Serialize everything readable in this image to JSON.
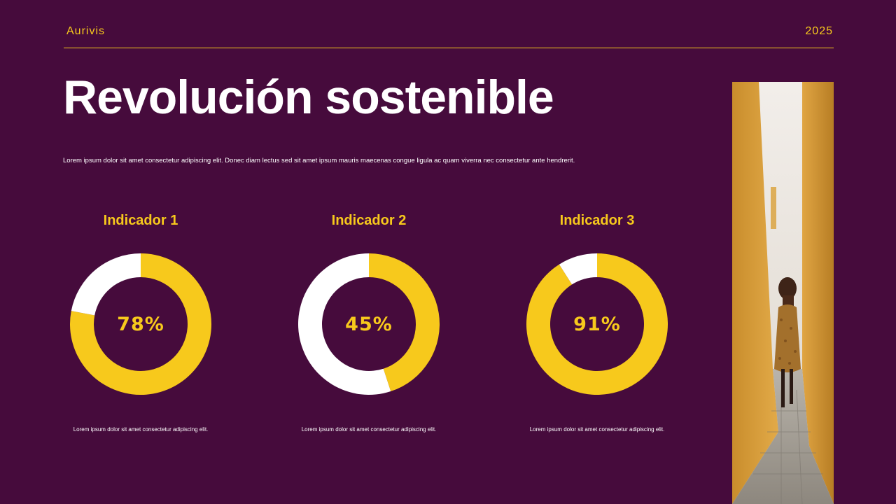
{
  "header": {
    "brand": "Aurivis",
    "year": "2025"
  },
  "title": "Revolución sostenible",
  "subtitle": "Lorem ipsum dolor sit amet consectetur adipiscing elit. Donec diam lectus sed sit amet ipsum mauris maecenas congue ligula ac quam viverra nec consectetur ante hendrerit.",
  "colors": {
    "background": "#460b3c",
    "accent": "#f7c91c",
    "remainder": "#ffffff"
  },
  "chart_data": [
    {
      "type": "pie",
      "title": "Indicador 1",
      "categories": [
        "",
        ""
      ],
      "values": [
        78,
        22
      ],
      "label": "78%",
      "note": "Lorem ipsum dolor sit amet consectetur adipiscing elit."
    },
    {
      "type": "pie",
      "title": "Indicador 2",
      "categories": [
        "",
        ""
      ],
      "values": [
        45,
        55
      ],
      "label": "45%",
      "note": "Lorem ipsum dolor sit amet consectetur adipiscing elit."
    },
    {
      "type": "pie",
      "title": "Indicador 3",
      "categories": [
        "",
        ""
      ],
      "values": [
        91,
        9
      ],
      "label": "91%",
      "note": "Lorem ipsum dolor sit amet consectetur adipiscing elit."
    }
  ]
}
